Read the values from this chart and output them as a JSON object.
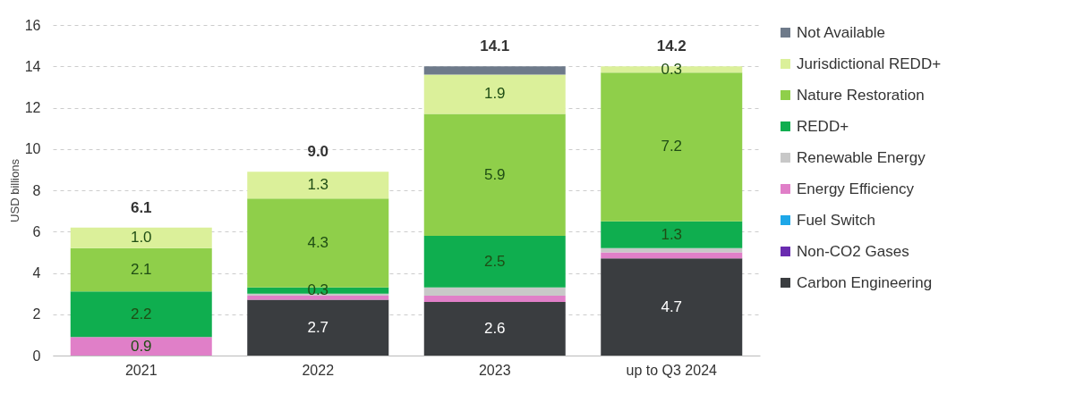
{
  "chart_data": {
    "type": "bar",
    "stacked": true,
    "ylabel": "USD billions",
    "categories": [
      "2021",
      "2022",
      "2023",
      "up to Q3 2024"
    ],
    "series": [
      {
        "name": "Carbon Engineering",
        "color": "#3a3d40",
        "values": [
          0,
          2.7,
          2.6,
          4.7
        ],
        "value_labels": [
          null,
          "2.7",
          "2.6",
          "4.7"
        ]
      },
      {
        "name": "Non-CO2 Gases",
        "color": "#6a2cb0",
        "values": [
          0,
          0,
          0,
          0
        ]
      },
      {
        "name": "Fuel Switch",
        "color": "#1ea7e8",
        "values": [
          0,
          0,
          0,
          0
        ]
      },
      {
        "name": "Energy Efficiency",
        "color": "#e07fc8",
        "values": [
          0.9,
          0.2,
          0.3,
          0.3
        ],
        "value_labels": [
          "0.9",
          null,
          null,
          null
        ]
      },
      {
        "name": "Renewable Energy",
        "color": "#c8c8c8",
        "values": [
          0,
          0.1,
          0.4,
          0.2
        ]
      },
      {
        "name": "REDD+",
        "color": "#0fae4f",
        "values": [
          2.2,
          0.3,
          2.5,
          1.3
        ],
        "value_labels": [
          "2.2",
          "0.3",
          "2.5",
          "1.3"
        ]
      },
      {
        "name": "Nature Restoration",
        "color": "#8fcf4a",
        "values": [
          2.1,
          4.3,
          5.9,
          7.2
        ],
        "value_labels": [
          "2.1",
          "4.3",
          "5.9",
          "7.2"
        ]
      },
      {
        "name": "Jurisdictional REDD+",
        "color": "#dbf09a",
        "values": [
          1.0,
          1.3,
          1.9,
          0.3
        ],
        "value_labels": [
          "1.0",
          "1.3",
          "1.9",
          "0.3"
        ]
      },
      {
        "name": "Not Available",
        "color": "#6e7a8a",
        "values": [
          0,
          0,
          0.4,
          0
        ]
      }
    ],
    "totals": [
      "6.1",
      "9.0",
      "14.1",
      "14.2"
    ],
    "ylim": [
      0,
      16
    ],
    "yticks": [
      0,
      2,
      4,
      6,
      8,
      10,
      12,
      14,
      16
    ],
    "grid": "y",
    "legend": "right"
  }
}
